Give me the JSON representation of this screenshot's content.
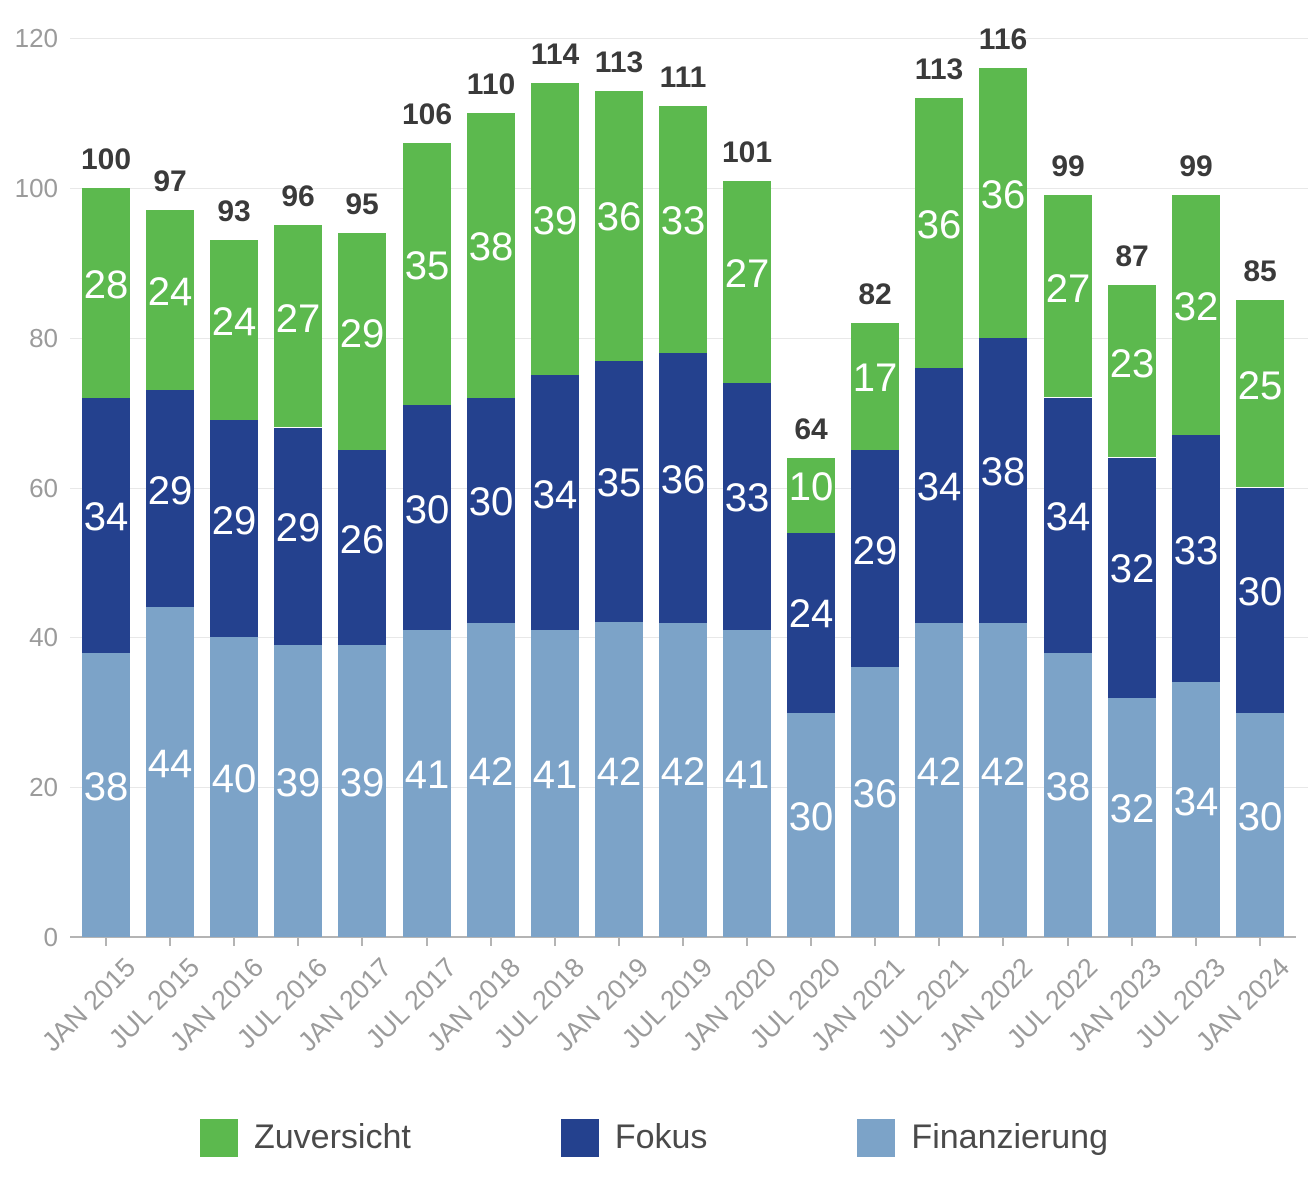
{
  "chart_data": {
    "type": "bar",
    "stacked": true,
    "title": "",
    "categories": [
      "JAN 2015",
      "JUL 2015",
      "JAN 2016",
      "JUL 2016",
      "JAN 2017",
      "JUL 2017",
      "JAN 2018",
      "JUL 2018",
      "JAN 2019",
      "JUL 2019",
      "JAN 2020",
      "JUL 2020",
      "JAN 2021",
      "JUL 2021",
      "JAN 2022",
      "JUL 2022",
      "JAN 2023",
      "JUL 2023",
      "JAN 2024"
    ],
    "series": [
      {
        "name": "Zuversicht",
        "color": "#5CB94E",
        "values": [
          28,
          24,
          24,
          27,
          29,
          35,
          38,
          39,
          36,
          33,
          27,
          10,
          17,
          36,
          36,
          27,
          23,
          32,
          25
        ]
      },
      {
        "name": "Fokus",
        "color": "#24418E",
        "values": [
          34,
          29,
          29,
          29,
          26,
          30,
          30,
          34,
          35,
          36,
          33,
          24,
          29,
          34,
          38,
          34,
          32,
          33,
          30
        ]
      },
      {
        "name": "Finanzierung",
        "color": "#7CA3C8",
        "values": [
          38,
          44,
          40,
          39,
          39,
          41,
          42,
          41,
          42,
          42,
          41,
          30,
          36,
          42,
          42,
          38,
          32,
          34,
          30
        ]
      }
    ],
    "stack_order_bottom_to_top": [
      "Finanzierung",
      "Fokus",
      "Zuversicht"
    ],
    "totals": [
      100,
      97,
      93,
      96,
      95,
      106,
      110,
      114,
      113,
      111,
      101,
      64,
      82,
      113,
      116,
      99,
      87,
      99,
      85
    ],
    "y_ticks": [
      0,
      20,
      40,
      60,
      80,
      100,
      120
    ],
    "ylim": [
      0,
      120
    ],
    "grid": true,
    "legend_position": "bottom",
    "colors": {
      "axis_text": "#9B9B9B",
      "total_text": "#3A3A3A",
      "segment_text": "#FFFFFF",
      "gridline": "#E8E8E8",
      "axis_line": "#B4B4B4",
      "legend_text": "#4A4A4A",
      "background": "#FFFFFF"
    }
  }
}
